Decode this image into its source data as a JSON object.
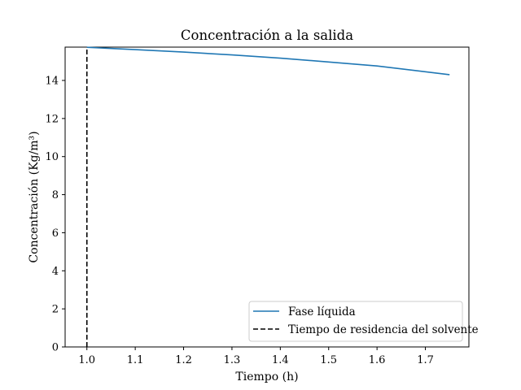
{
  "chart_data": {
    "type": "line",
    "title": "Concentración a la salida",
    "xlabel": "Tiempo (h)",
    "ylabel": "Concentración (Kg/m³)",
    "xlim": [
      0.955,
      1.79
    ],
    "ylim": [
      0,
      15.75
    ],
    "xticks": [
      1.0,
      1.1,
      1.2,
      1.3,
      1.4,
      1.5,
      1.6,
      1.7
    ],
    "xtick_labels": [
      "1.0",
      "1.1",
      "1.2",
      "1.3",
      "1.4",
      "1.5",
      "1.6",
      "1.7"
    ],
    "yticks": [
      0,
      2,
      4,
      6,
      8,
      10,
      12,
      14
    ],
    "ytick_labels": [
      "0",
      "2",
      "4",
      "6",
      "8",
      "10",
      "12",
      "14"
    ],
    "grid": false,
    "legend_position": "bottom-right",
    "series": [
      {
        "name": "Fase líquida",
        "style": "solid",
        "color": "#1f77b4",
        "x": [
          1.0,
          1.1,
          1.2,
          1.3,
          1.4,
          1.5,
          1.6,
          1.75
        ],
        "y": [
          15.74,
          15.62,
          15.49,
          15.34,
          15.17,
          14.97,
          14.76,
          14.3
        ]
      },
      {
        "name": "Tiempo de residencia del solvente",
        "style": "dashed",
        "color": "#000000",
        "x": [
          1.0,
          1.0
        ],
        "y": [
          0,
          15.75
        ]
      }
    ]
  }
}
